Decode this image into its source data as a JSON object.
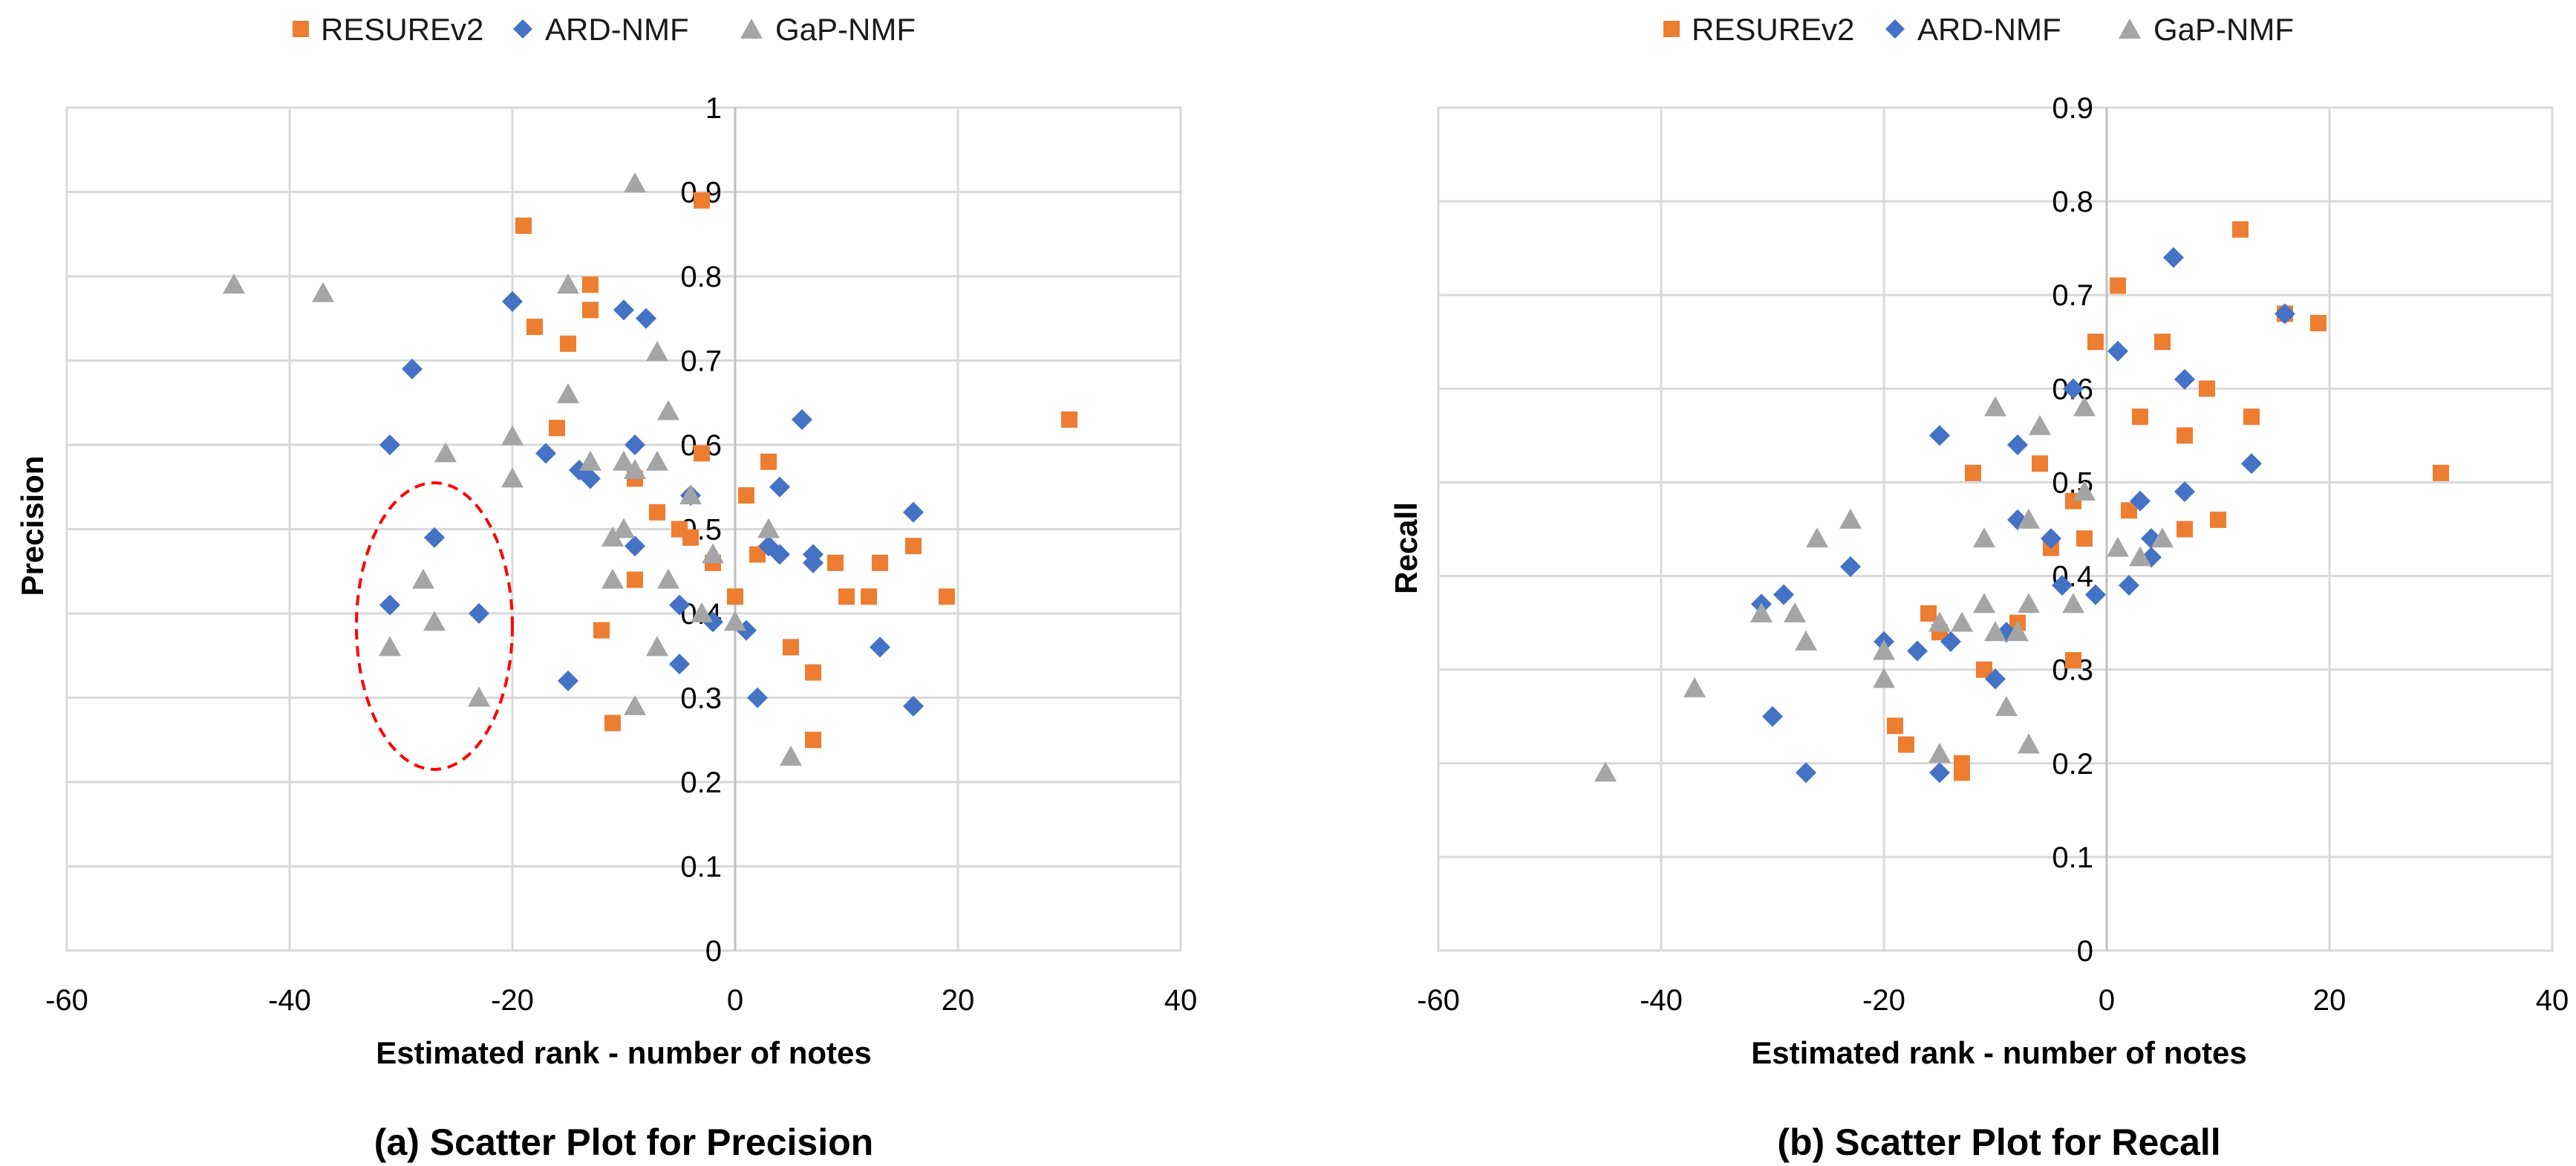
{
  "chart_data": [
    {
      "type": "scatter",
      "caption": "(a) Scatter Plot for Precision",
      "xlabel": "Estimated rank - number of notes",
      "ylabel": "Precision",
      "xlim": [
        -60,
        40
      ],
      "ylim": [
        0,
        1
      ],
      "xticks": [
        "-60",
        "-40",
        "-20",
        "0",
        "20",
        "40"
      ],
      "yticks": [
        "0",
        "0.1",
        "0.2",
        "0.3",
        "0.4",
        "0.5",
        "0.6",
        "0.7",
        "0.8",
        "0.9",
        "1"
      ],
      "grid": true,
      "legend_position": "top",
      "annotation": "red dashed ellipse around x -31 to -23, y 0.3 to 0.5",
      "highlight_ellipse": {
        "cx": -27,
        "cy": 0.385,
        "rx": 7,
        "ry": 0.17,
        "color": "#ff0000"
      },
      "series": [
        {
          "name": "RESUREv2",
          "marker": "square",
          "color": "#ED7D31",
          "points": [
            [
              -19,
              0.86
            ],
            [
              -18,
              0.74
            ],
            [
              -15,
              0.72
            ],
            [
              -13,
              0.79
            ],
            [
              -13,
              0.76
            ],
            [
              -16,
              0.62
            ],
            [
              -12,
              0.38
            ],
            [
              -11,
              0.27
            ],
            [
              -9,
              0.56
            ],
            [
              -9,
              0.44
            ],
            [
              -7,
              0.52
            ],
            [
              -5,
              0.5
            ],
            [
              -4,
              0.49
            ],
            [
              -3,
              0.59
            ],
            [
              -3,
              0.89
            ],
            [
              -2,
              0.46
            ],
            [
              0,
              0.42
            ],
            [
              1,
              0.54
            ],
            [
              2,
              0.47
            ],
            [
              3,
              0.58
            ],
            [
              5,
              0.36
            ],
            [
              7,
              0.33
            ],
            [
              7,
              0.25
            ],
            [
              9,
              0.46
            ],
            [
              10,
              0.42
            ],
            [
              12,
              0.42
            ],
            [
              13,
              0.46
            ],
            [
              16,
              0.48
            ],
            [
              19,
              0.42
            ],
            [
              30,
              0.63
            ]
          ]
        },
        {
          "name": "ARD-NMF",
          "marker": "diamond",
          "color": "#4472C4",
          "points": [
            [
              -29,
              0.69
            ],
            [
              -31,
              0.6
            ],
            [
              -27,
              0.49
            ],
            [
              -31,
              0.41
            ],
            [
              -23,
              0.4
            ],
            [
              -20,
              0.77
            ],
            [
              -17,
              0.59
            ],
            [
              -15,
              0.32
            ],
            [
              -14,
              0.57
            ],
            [
              -13,
              0.56
            ],
            [
              -10,
              0.76
            ],
            [
              -8,
              0.75
            ],
            [
              -9,
              0.6
            ],
            [
              -9,
              0.48
            ],
            [
              -4,
              0.54
            ],
            [
              -5,
              0.34
            ],
            [
              -5,
              0.41
            ],
            [
              -2,
              0.39
            ],
            [
              1,
              0.38
            ],
            [
              2,
              0.3
            ],
            [
              3,
              0.48
            ],
            [
              4,
              0.47
            ],
            [
              4,
              0.55
            ],
            [
              6,
              0.63
            ],
            [
              7,
              0.46
            ],
            [
              7,
              0.47
            ],
            [
              13,
              0.36
            ],
            [
              16,
              0.52
            ],
            [
              16,
              0.29
            ]
          ]
        },
        {
          "name": "GaP-NMF",
          "marker": "triangle",
          "color": "#A5A5A5",
          "points": [
            [
              -45,
              0.79
            ],
            [
              -37,
              0.78
            ],
            [
              -31,
              0.36
            ],
            [
              -28,
              0.44
            ],
            [
              -27,
              0.39
            ],
            [
              -26,
              0.59
            ],
            [
              -23,
              0.3
            ],
            [
              -20,
              0.61
            ],
            [
              -20,
              0.56
            ],
            [
              -15,
              0.79
            ],
            [
              -15,
              0.66
            ],
            [
              -13,
              0.58
            ],
            [
              -11,
              0.49
            ],
            [
              -11,
              0.44
            ],
            [
              -10,
              0.5
            ],
            [
              -10,
              0.58
            ],
            [
              -9,
              0.91
            ],
            [
              -9,
              0.57
            ],
            [
              -9,
              0.29
            ],
            [
              -7,
              0.71
            ],
            [
              -7,
              0.58
            ],
            [
              -6,
              0.64
            ],
            [
              -6,
              0.44
            ],
            [
              -7,
              0.36
            ],
            [
              -4,
              0.54
            ],
            [
              -3,
              0.4
            ],
            [
              -2,
              0.47
            ],
            [
              0,
              0.39
            ],
            [
              3,
              0.5
            ],
            [
              5,
              0.23
            ]
          ]
        }
      ]
    },
    {
      "type": "scatter",
      "caption": "(b) Scatter Plot for Recall",
      "xlabel": "Estimated rank - number of notes",
      "ylabel": "Recall",
      "xlim": [
        -60,
        40
      ],
      "ylim": [
        0,
        0.9
      ],
      "xticks": [
        "-60",
        "-40",
        "-20",
        "0",
        "20",
        "40"
      ],
      "yticks": [
        "0",
        "0.1",
        "0.2",
        "0.3",
        "0.4",
        "0.5",
        "0.6",
        "0.7",
        "0.8",
        "0.9"
      ],
      "grid": true,
      "legend_position": "top",
      "series": [
        {
          "name": "RESUREv2",
          "marker": "square",
          "color": "#ED7D31",
          "points": [
            [
              -19,
              0.24
            ],
            [
              -18,
              0.22
            ],
            [
              -16,
              0.36
            ],
            [
              -15,
              0.34
            ],
            [
              -13,
              0.2
            ],
            [
              -13,
              0.19
            ],
            [
              -12,
              0.51
            ],
            [
              -11,
              0.3
            ],
            [
              -8,
              0.35
            ],
            [
              -6,
              0.52
            ],
            [
              -5,
              0.43
            ],
            [
              -3,
              0.31
            ],
            [
              -3,
              0.48
            ],
            [
              -2,
              0.44
            ],
            [
              -1,
              0.65
            ],
            [
              1,
              0.71
            ],
            [
              2,
              0.47
            ],
            [
              3,
              0.57
            ],
            [
              5,
              0.65
            ],
            [
              7,
              0.55
            ],
            [
              7,
              0.45
            ],
            [
              9,
              0.6
            ],
            [
              10,
              0.46
            ],
            [
              12,
              0.77
            ],
            [
              13,
              0.57
            ],
            [
              16,
              0.68
            ],
            [
              19,
              0.67
            ],
            [
              30,
              0.51
            ]
          ]
        },
        {
          "name": "ARD-NMF",
          "marker": "diamond",
          "color": "#4472C4",
          "points": [
            [
              -31,
              0.37
            ],
            [
              -29,
              0.38
            ],
            [
              -30,
              0.25
            ],
            [
              -27,
              0.19
            ],
            [
              -23,
              0.41
            ],
            [
              -20,
              0.33
            ],
            [
              -17,
              0.32
            ],
            [
              -15,
              0.55
            ],
            [
              -14,
              0.33
            ],
            [
              -15,
              0.19
            ],
            [
              -10,
              0.29
            ],
            [
              -9,
              0.34
            ],
            [
              -8,
              0.54
            ],
            [
              -8,
              0.46
            ],
            [
              -5,
              0.44
            ],
            [
              -4,
              0.39
            ],
            [
              -3,
              0.6
            ],
            [
              -1,
              0.38
            ],
            [
              1,
              0.64
            ],
            [
              2,
              0.39
            ],
            [
              3,
              0.48
            ],
            [
              4,
              0.44
            ],
            [
              4,
              0.42
            ],
            [
              6,
              0.74
            ],
            [
              7,
              0.61
            ],
            [
              7,
              0.49
            ],
            [
              13,
              0.52
            ],
            [
              16,
              0.68
            ]
          ]
        },
        {
          "name": "GaP-NMF",
          "marker": "triangle",
          "color": "#A5A5A5",
          "points": [
            [
              -45,
              0.19
            ],
            [
              -37,
              0.28
            ],
            [
              -31,
              0.36
            ],
            [
              -28,
              0.36
            ],
            [
              -27,
              0.33
            ],
            [
              -26,
              0.44
            ],
            [
              -23,
              0.46
            ],
            [
              -20,
              0.32
            ],
            [
              -20,
              0.29
            ],
            [
              -15,
              0.35
            ],
            [
              -15,
              0.21
            ],
            [
              -13,
              0.35
            ],
            [
              -11,
              0.44
            ],
            [
              -11,
              0.37
            ],
            [
              -10,
              0.58
            ],
            [
              -10,
              0.34
            ],
            [
              -9,
              0.26
            ],
            [
              -8,
              0.34
            ],
            [
              -7,
              0.37
            ],
            [
              -7,
              0.22
            ],
            [
              -6,
              0.56
            ],
            [
              -7,
              0.46
            ],
            [
              -3,
              0.37
            ],
            [
              -2,
              0.58
            ],
            [
              -2,
              0.49
            ],
            [
              1,
              0.43
            ],
            [
              3,
              0.42
            ],
            [
              5,
              0.44
            ]
          ]
        }
      ]
    }
  ]
}
